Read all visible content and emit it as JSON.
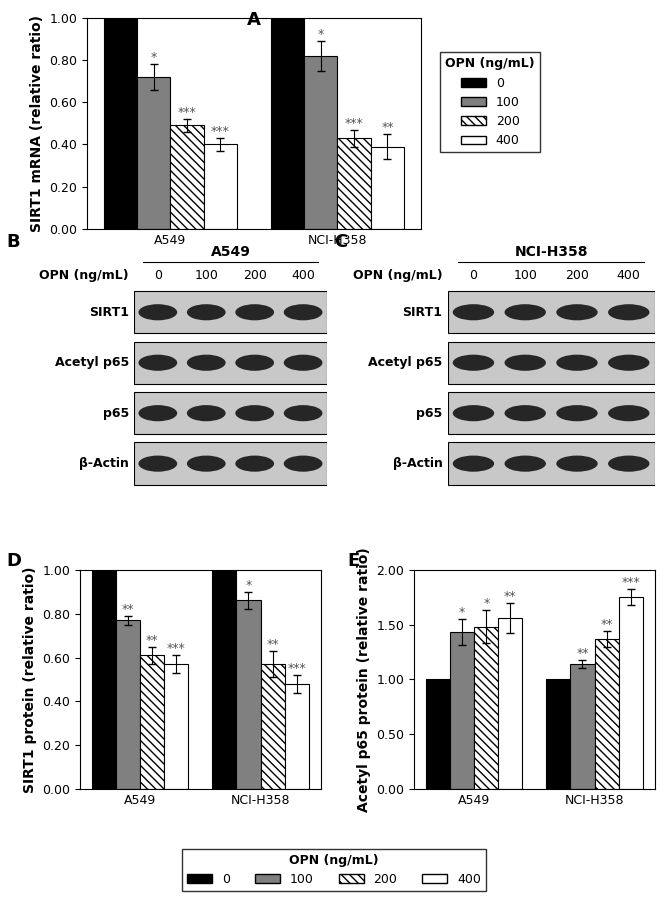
{
  "chart_data": [
    {
      "type": "bar",
      "annotation": "A",
      "ylabel": "SIRT1 mRNA (relative ratio)",
      "categories": [
        "A549",
        "NCI-H358"
      ],
      "ylim": [
        0,
        1.0
      ],
      "yticks": [
        {
          "value": 0,
          "label": "0.00"
        },
        {
          "value": 0.2,
          "label": "0.20"
        },
        {
          "value": 0.4,
          "label": "0.40"
        },
        {
          "value": 0.6,
          "label": "0.60"
        },
        {
          "value": 0.8,
          "label": "0.80"
        },
        {
          "value": 1.0,
          "label": "1.00"
        }
      ],
      "legend": "center left",
      "legend_title": "OPN (ng/mL)",
      "series": [
        {
          "name": "0",
          "color": "#000000",
          "values": [
            1.0,
            1.0
          ],
          "errors": [
            null,
            null
          ],
          "significance": [
            null,
            null
          ]
        },
        {
          "name": "100",
          "color": "#808080",
          "values": [
            0.72,
            0.82
          ],
          "errors": [
            0.06,
            0.07
          ],
          "significance": [
            "*",
            "*"
          ]
        },
        {
          "name": "200",
          "color": "#ffffff",
          "values": [
            0.49,
            0.43
          ],
          "errors": [
            0.03,
            0.04
          ],
          "significance": [
            "***",
            "***"
          ]
        },
        {
          "name": "400",
          "color": "#ffffff",
          "values": [
            0.4,
            0.39
          ],
          "errors": [
            0.03,
            0.06
          ],
          "significance": [
            "***",
            "**"
          ]
        }
      ]
    },
    {
      "type": "bar",
      "annotation": "D",
      "ylabel": "SIRT1 protein (relative ratio)",
      "categories": [
        "A549",
        "NCI-H358"
      ],
      "ylim": [
        0,
        1.0
      ],
      "yticks": [
        {
          "value": 0,
          "label": "0.00"
        },
        {
          "value": 0.2,
          "label": "0.20"
        },
        {
          "value": 0.4,
          "label": "0.40"
        },
        {
          "value": 0.6,
          "label": "0.60"
        },
        {
          "value": 0.8,
          "label": "0.80"
        },
        {
          "value": 1.0,
          "label": "1.00"
        }
      ],
      "series": [
        {
          "name": "0",
          "color": "#000000",
          "values": [
            1.0,
            1.0
          ],
          "errors": [
            null,
            null
          ],
          "significance": [
            null,
            null
          ]
        },
        {
          "name": "100",
          "color": "#808080",
          "values": [
            0.77,
            0.86
          ],
          "errors": [
            0.02,
            0.04
          ],
          "significance": [
            "**",
            "*"
          ]
        },
        {
          "name": "200",
          "color": "#ffffff",
          "values": [
            0.61,
            0.57
          ],
          "errors": [
            0.04,
            0.06
          ],
          "significance": [
            "**",
            "**"
          ]
        },
        {
          "name": "400",
          "color": "#ffffff",
          "values": [
            0.57,
            0.48
          ],
          "errors": [
            0.04,
            0.04
          ],
          "significance": [
            "***",
            "***"
          ]
        }
      ]
    },
    {
      "type": "bar",
      "annotation": "E",
      "ylabel": "Acetyl p65 protein (relative ratio)",
      "categories": [
        "A549",
        "NCI-H358"
      ],
      "ylim": [
        0,
        2.0
      ],
      "yticks": [
        {
          "value": 0,
          "label": "0.00"
        },
        {
          "value": 0.5,
          "label": "0.50"
        },
        {
          "value": 1.0,
          "label": "1.00"
        },
        {
          "value": 1.5,
          "label": "1.50"
        },
        {
          "value": 2.0,
          "label": "2.00"
        }
      ],
      "series": [
        {
          "name": "0",
          "color": "#000000",
          "values": [
            1.0,
            1.0
          ],
          "errors": [
            null,
            null
          ],
          "significance": [
            null,
            null
          ]
        },
        {
          "name": "100",
          "color": "#808080",
          "values": [
            1.43,
            1.14
          ],
          "errors": [
            0.12,
            0.04
          ],
          "significance": [
            "*",
            "**"
          ]
        },
        {
          "name": "200",
          "color": "#ffffff",
          "values": [
            1.48,
            1.37
          ],
          "errors": [
            0.15,
            0.07
          ],
          "significance": [
            "*",
            "**"
          ]
        },
        {
          "name": "400",
          "color": "#ffffff",
          "values": [
            1.56,
            1.75
          ],
          "errors": [
            0.14,
            0.07
          ],
          "significance": [
            "**",
            "***"
          ]
        }
      ]
    }
  ],
  "figure_legend": {
    "title": "OPN (ng/mL)",
    "legend": "lower center"
  },
  "blots": [
    {
      "annotation": "B",
      "title": "A549",
      "header": "OPN (ng/mL)",
      "lanes": [
        "0",
        "100",
        "200",
        "400"
      ],
      "rows": [
        "SIRT1",
        "Acetyl p65",
        "p65",
        "β-Actin"
      ]
    },
    {
      "annotation": "C",
      "title": "NCI-H358",
      "header": "OPN (ng/mL)",
      "lanes": [
        "0",
        "100",
        "200",
        "400"
      ],
      "rows": [
        "SIRT1",
        "Acetyl p65",
        "p65",
        "β-Actin"
      ]
    }
  ]
}
